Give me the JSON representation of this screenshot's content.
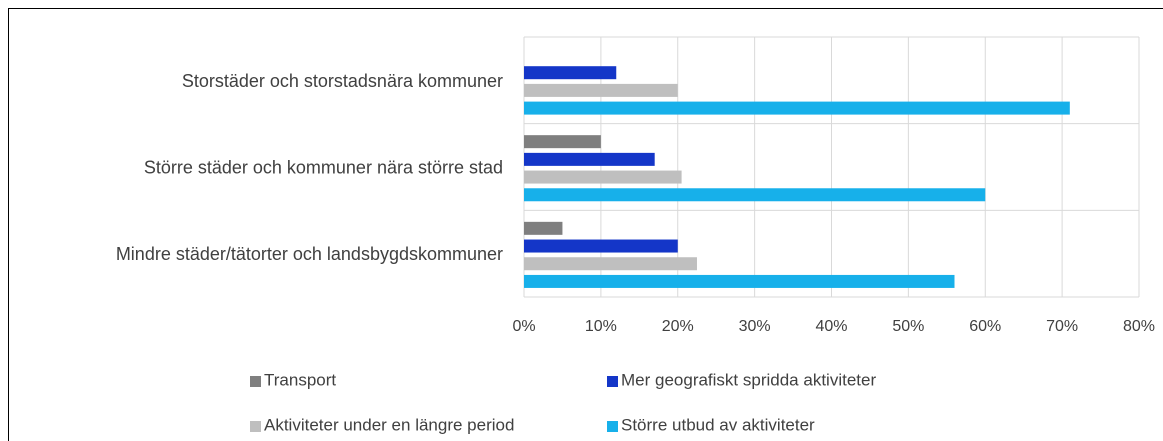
{
  "chart_data": {
    "type": "hbar",
    "categories": [
      "Storstäder och storstadsnära kommuner",
      "Större städer och kommuner nära större stad",
      "Mindre städer/tätorter och landsbygdskommuner"
    ],
    "series": [
      {
        "name": "Transport",
        "color": "#7f7f7f",
        "values": [
          0,
          10,
          5
        ]
      },
      {
        "name": "Mer geografiskt spridda aktiviteter",
        "color": "#1436c8",
        "values": [
          12,
          17,
          20
        ]
      },
      {
        "name": "Aktiviteter under en längre period",
        "color": "#bfbfbf",
        "values": [
          20,
          20.5,
          22.5
        ]
      },
      {
        "name": "Större utbud av aktiviteter",
        "color": "#17b0ea",
        "values": [
          71,
          60,
          56
        ]
      }
    ],
    "xlim": [
      0,
      80
    ],
    "xticks": [
      {
        "value": 0,
        "label": "0%"
      },
      {
        "value": 10,
        "label": "10%"
      },
      {
        "value": 20,
        "label": "20%"
      },
      {
        "value": 30,
        "label": "30%"
      },
      {
        "value": 40,
        "label": "40%"
      },
      {
        "value": 50,
        "label": "50%"
      },
      {
        "value": 60,
        "label": "60%"
      },
      {
        "value": 70,
        "label": "70%"
      },
      {
        "value": 80,
        "label": "80%"
      }
    ],
    "grid": true,
    "legend": "bottom"
  }
}
